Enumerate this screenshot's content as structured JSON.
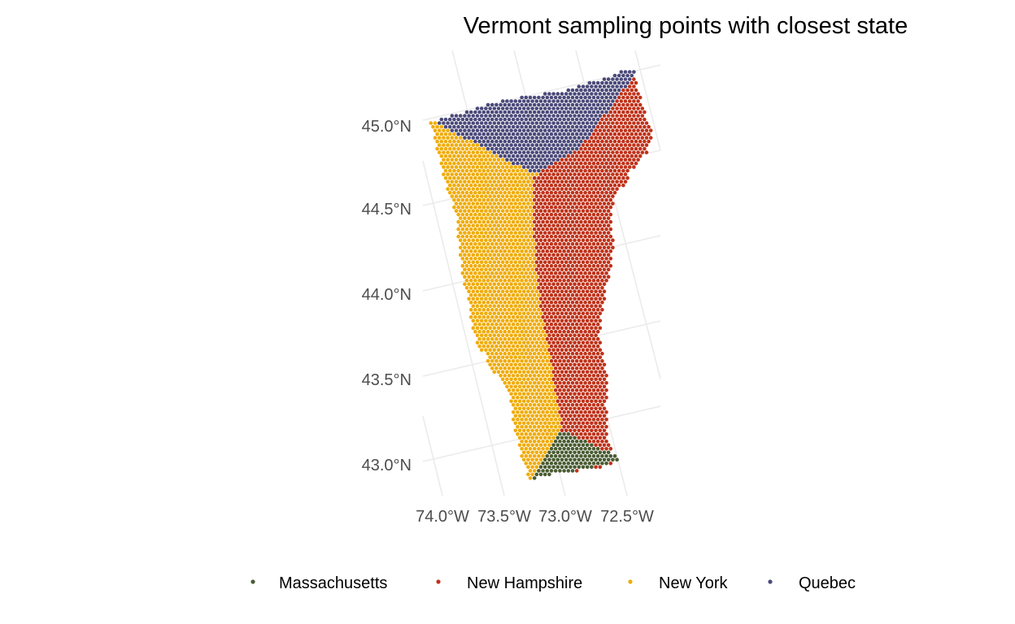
{
  "chart_data": {
    "type": "scatter",
    "title": "Vermont sampling points with closest state",
    "xlabel": "",
    "ylabel": "",
    "x_ticks": [
      "74.0°W",
      "73.5°W",
      "73.0°W",
      "72.5°W"
    ],
    "y_ticks": [
      "43.0°N",
      "43.5°N",
      "44.0°N",
      "44.5°N",
      "45.0°N"
    ],
    "xlim": [
      -74.1,
      -72.4
    ],
    "ylim": [
      42.8,
      45.1
    ],
    "grid": true,
    "legend_position": "bottom",
    "series": [
      {
        "name": "Massachusetts",
        "color": "#4a5c32"
      },
      {
        "name": "New Hampshire",
        "color": "#c0321a"
      },
      {
        "name": "New York",
        "color": "#f0ac0a"
      },
      {
        "name": "Quebec",
        "color": "#4b4a7a"
      }
    ]
  }
}
